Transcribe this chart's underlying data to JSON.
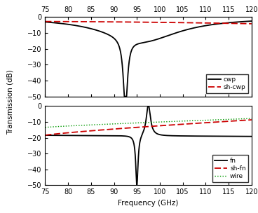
{
  "freq_range": [
    75,
    120
  ],
  "ylim": [
    -50,
    0
  ],
  "yticks": [
    0,
    -10,
    -20,
    -30,
    -40,
    -50
  ],
  "xticks": [
    75,
    80,
    85,
    90,
    95,
    100,
    105,
    110,
    115,
    120
  ],
  "ylabel": "Transmission (dB)",
  "xlabel": "Frequency (GHz)",
  "colors": {
    "black": "#000000",
    "red": "#cc0000",
    "green": "#009900"
  },
  "cwp_resonance": 92.5,
  "cwp_gamma": 0.55,
  "cwp_dip": -44.0,
  "fn_dip_freq": 95.0,
  "fn_dip_gamma": 0.3,
  "fn_peak_freq": 97.5,
  "fn_peak_gamma": 0.55
}
